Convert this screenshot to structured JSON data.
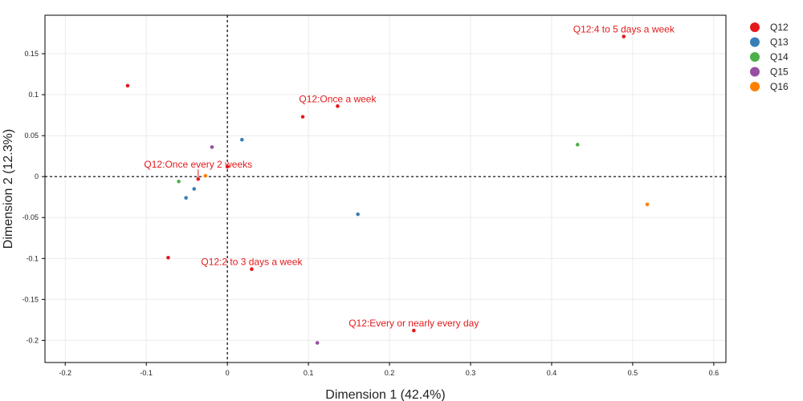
{
  "chart_data": {
    "type": "scatter",
    "title": "",
    "xlabel": "Dimension 1 (42.4%)",
    "ylabel": "Dimension 2 (12.3%)",
    "xlim": [
      -0.225,
      0.615
    ],
    "ylim": [
      -0.227,
      0.197
    ],
    "xticks": [
      -0.2,
      -0.1,
      0,
      0.1,
      0.2,
      0.3,
      0.4,
      0.5,
      0.6
    ],
    "xtick_labels": [
      "-0.2",
      "-0.1",
      "0",
      "0.1",
      "0.2",
      "0.3",
      "0.4",
      "0.5",
      "0.6"
    ],
    "yticks": [
      -0.2,
      -0.15,
      -0.1,
      -0.05,
      0,
      0.05,
      0.1,
      0.15
    ],
    "ytick_labels": [
      "-0.2",
      "-0.15",
      "-0.1",
      "-0.05",
      "0",
      "0.05",
      "0.1",
      "0.15"
    ],
    "grid": true,
    "reference_lines": {
      "x": 0,
      "y": 0,
      "style": "dashed"
    },
    "legend_position": "right",
    "series": [
      {
        "name": "Q12",
        "color": "#e41a1c",
        "points": [
          {
            "x": -0.123,
            "y": 0.111
          },
          {
            "x": 0.093,
            "y": 0.073
          },
          {
            "x": 0.136,
            "y": 0.086
          },
          {
            "x": 0.489,
            "y": 0.171
          },
          {
            "x": -0.036,
            "y": -0.003
          },
          {
            "x": 0.0,
            "y": 0.012
          },
          {
            "x": -0.073,
            "y": -0.099
          },
          {
            "x": 0.03,
            "y": -0.113
          },
          {
            "x": 0.23,
            "y": -0.188
          }
        ]
      },
      {
        "name": "Q13",
        "color": "#377eb8",
        "points": [
          {
            "x": 0.018,
            "y": 0.045
          },
          {
            "x": -0.041,
            "y": -0.015
          },
          {
            "x": -0.051,
            "y": -0.026
          },
          {
            "x": 0.161,
            "y": -0.046
          }
        ]
      },
      {
        "name": "Q14",
        "color": "#4daf4a",
        "points": [
          {
            "x": -0.06,
            "y": -0.006
          },
          {
            "x": 0.432,
            "y": 0.039
          }
        ]
      },
      {
        "name": "Q15",
        "color": "#984ea3",
        "points": [
          {
            "x": -0.019,
            "y": 0.036
          },
          {
            "x": 0.111,
            "y": -0.203
          }
        ]
      },
      {
        "name": "Q16",
        "color": "#ff7f00",
        "points": [
          {
            "x": -0.027,
            "y": 0.001
          },
          {
            "x": 0.518,
            "y": -0.034
          }
        ]
      }
    ],
    "annotations": [
      {
        "text": "Q12:4 to 5 days a week",
        "x": 0.489,
        "y": 0.171,
        "color": "#e41a1c"
      },
      {
        "text": "Q12:Once a week",
        "x": 0.136,
        "y": 0.086,
        "color": "#e41a1c"
      },
      {
        "text": "Q12:Once every 2 weeks",
        "x": -0.036,
        "y": -0.003,
        "color": "#e41a1c",
        "pointer": true
      },
      {
        "text": "Q12:2 to 3 days a week",
        "x": 0.03,
        "y": -0.113,
        "color": "#e41a1c"
      },
      {
        "text": "Q12:Every or nearly every day",
        "x": 0.23,
        "y": -0.188,
        "color": "#e41a1c"
      }
    ]
  }
}
